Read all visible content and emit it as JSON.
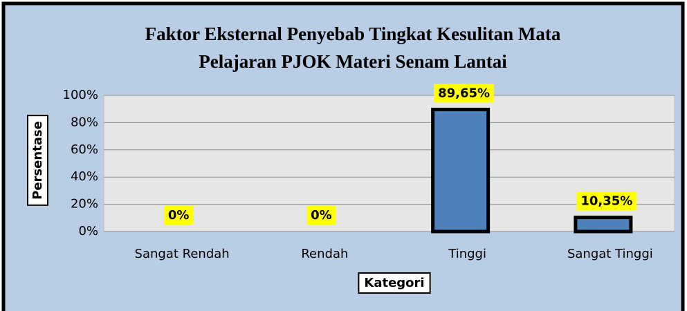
{
  "chart_data": {
    "type": "bar",
    "title": [
      "Faktor Eksternal Penyebab Tingkat Kesulitan Mata",
      "Pelajaran PJOK Materi Senam Lantai"
    ],
    "x_label": "Kategori",
    "y_label": "Persentase",
    "categories": [
      "Sangat Rendah",
      "Rendah",
      "Tinggi",
      "Sangat Tinggi"
    ],
    "values": [
      0,
      0,
      89.65,
      10.35
    ],
    "value_labels": [
      "0%",
      "0%",
      "89,65%",
      "10,35%"
    ],
    "color": "#4f81bd",
    "ylim": [
      0,
      100
    ],
    "yticks": [
      {
        "value": 0,
        "label": "0%"
      },
      {
        "value": 20,
        "label": "20%"
      },
      {
        "value": 40,
        "label": "40%"
      },
      {
        "value": 60,
        "label": "60%"
      },
      {
        "value": 80,
        "label": "80%"
      },
      {
        "value": 100,
        "label": "100%"
      }
    ],
    "grid": true
  }
}
